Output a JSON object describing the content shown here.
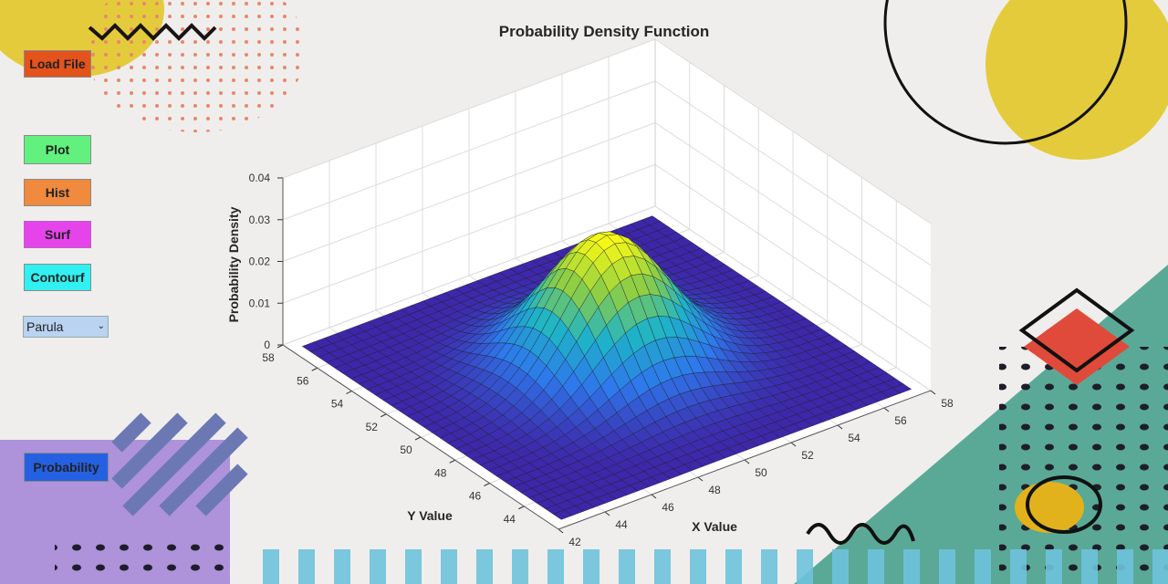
{
  "buttons": {
    "load_file": "Load File",
    "plot": "Plot",
    "hist": "Hist",
    "surf": "Surf",
    "contourf": "Contourf",
    "probability": "Probability"
  },
  "colormap": {
    "selected": "Parula"
  },
  "plot": {
    "title": "Probability Density Function",
    "xlabel": "X Value",
    "ylabel": "Y Value",
    "zlabel": "Probability Density",
    "xlim": [
      42,
      58
    ],
    "xticks": [
      42,
      44,
      46,
      48,
      50,
      52,
      54,
      56,
      58
    ],
    "ylim": [
      42,
      58
    ],
    "yticks": [
      44,
      46,
      48,
      50,
      52,
      54,
      56,
      58
    ],
    "zlim": [
      0,
      0.04
    ],
    "zticks": [
      0,
      0.01,
      0.02,
      0.03,
      0.04
    ]
  }
}
